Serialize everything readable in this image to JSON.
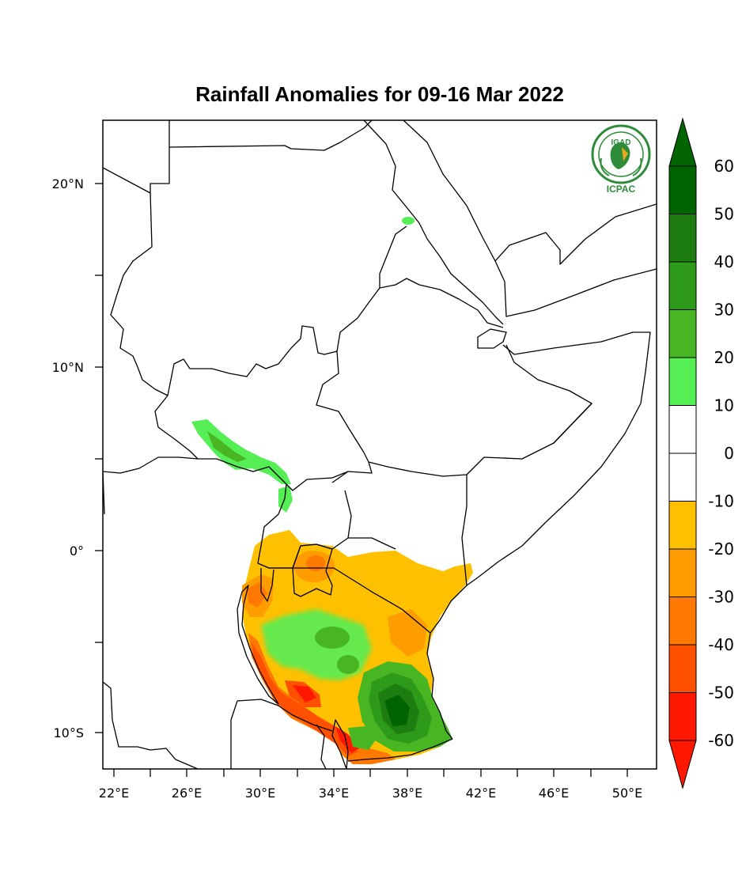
{
  "title": "Rainfall Anomalies for 09-16 Mar 2022",
  "logo": {
    "top_text": "IGAD",
    "bottom_text": "ICPAC",
    "color": "#2e8b3a"
  },
  "axes": {
    "lat_labels": [
      "20°N",
      "10°N",
      "0°",
      "10°S"
    ],
    "lon_labels": [
      "22°E",
      "26°E",
      "30°E",
      "34°E",
      "38°E",
      "42°E",
      "46°E",
      "50°E"
    ]
  },
  "colorbar": {
    "labels": [
      "60",
      "50",
      "40",
      "30",
      "20",
      "10",
      "0",
      "-10",
      "-20",
      "-30",
      "-40",
      "-50",
      "-60"
    ],
    "colors_top_to_bottom": [
      "#006400",
      "#1e7d10",
      "#2e9a1a",
      "#48b623",
      "#55ee55",
      "#ffffff",
      "#ffffff",
      "#ffc000",
      "#ff9c00",
      "#ff7800",
      "#ff5000",
      "#ff1800"
    ],
    "over_color": "#006400",
    "under_color": "#ff1800"
  }
}
